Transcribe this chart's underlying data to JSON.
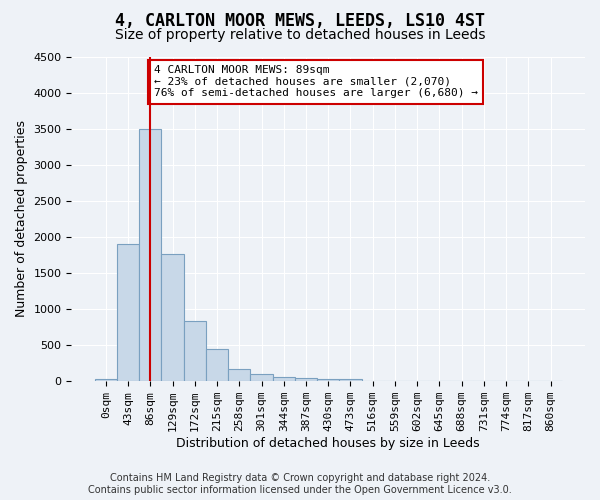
{
  "title": "4, CARLTON MOOR MEWS, LEEDS, LS10 4ST",
  "subtitle": "Size of property relative to detached houses in Leeds",
  "xlabel": "Distribution of detached houses by size in Leeds",
  "ylabel": "Number of detached properties",
  "bin_labels": [
    "0sqm",
    "43sqm",
    "86sqm",
    "129sqm",
    "172sqm",
    "215sqm",
    "258sqm",
    "301sqm",
    "344sqm",
    "387sqm",
    "430sqm",
    "473sqm",
    "516sqm",
    "559sqm",
    "602sqm",
    "645sqm",
    "688sqm",
    "731sqm",
    "774sqm",
    "817sqm",
    "860sqm"
  ],
  "bar_values": [
    30,
    1900,
    3500,
    1760,
    840,
    450,
    170,
    100,
    60,
    50,
    30,
    25,
    0,
    0,
    0,
    0,
    0,
    0,
    0,
    0,
    0
  ],
  "bar_color": "#c8d8e8",
  "bar_edge_color": "#7aa0c0",
  "vline_x": 2,
  "vline_color": "#cc0000",
  "annotation_text": "4 CARLTON MOOR MEWS: 89sqm\n← 23% of detached houses are smaller (2,070)\n76% of semi-detached houses are larger (6,680) →",
  "annotation_box_color": "#ffffff",
  "annotation_box_edge_color": "#cc0000",
  "ylim": [
    0,
    4500
  ],
  "yticks": [
    0,
    500,
    1000,
    1500,
    2000,
    2500,
    3000,
    3500,
    4000,
    4500
  ],
  "footer_line1": "Contains HM Land Registry data © Crown copyright and database right 2024.",
  "footer_line2": "Contains public sector information licensed under the Open Government Licence v3.0.",
  "bg_color": "#eef2f7",
  "plot_bg_color": "#eef2f7",
  "title_fontsize": 12,
  "subtitle_fontsize": 10,
  "axis_label_fontsize": 9,
  "tick_fontsize": 8,
  "footer_fontsize": 7
}
